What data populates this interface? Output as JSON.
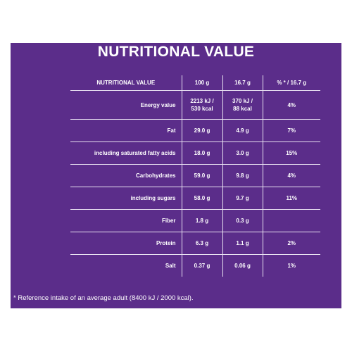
{
  "title": "NUTRITIONAL VALUE",
  "columns": [
    "NUTRITIONAL VALUE",
    "100 g",
    "16.7 g",
    "% * / 16.7 g"
  ],
  "rows": [
    {
      "label": "Energy value",
      "per100_line1": "2213 kJ /",
      "per100_line2": "530 kcal",
      "perPortion_line1": "370 kJ /",
      "perPortion_line2": "88 kcal",
      "pct": "4%"
    },
    {
      "label": "Fat",
      "per100": "29.0 g",
      "perPortion": "4.9 g",
      "pct": "7%"
    },
    {
      "label": "including saturated fatty acids",
      "per100": "18.0 g",
      "perPortion": "3.0 g",
      "pct": "15%"
    },
    {
      "label": "Carbohydrates",
      "per100": "59.0 g",
      "perPortion": "9.8 g",
      "pct": "4%"
    },
    {
      "label": "including sugars",
      "per100": "58.0 g",
      "perPortion": "9.7 g",
      "pct": "11%"
    },
    {
      "label": "Fiber",
      "per100": "1.8 g",
      "perPortion": "0.3 g",
      "pct": ""
    },
    {
      "label": "Protein",
      "per100": "6.3 g",
      "perPortion": "1.1 g",
      "pct": "2%"
    },
    {
      "label": "Salt",
      "per100": "0.37 g",
      "perPortion": "0.06 g",
      "pct": "1%"
    }
  ],
  "footnote": "* Reference intake of an average adult (8400 kJ / 2000 kcal).",
  "colors": {
    "background": "#5b2d8a",
    "text": "#ffffff",
    "lines": "#e9e2f2"
  }
}
